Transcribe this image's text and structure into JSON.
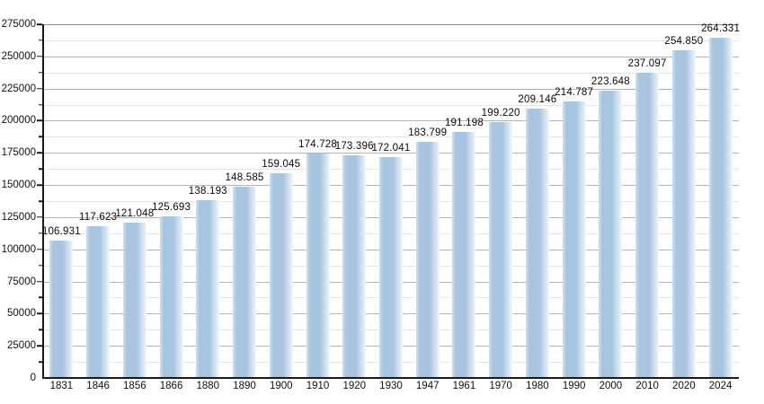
{
  "chart_data": {
    "type": "bar",
    "title": "",
    "xlabel": "",
    "ylabel": "",
    "categories": [
      "1831",
      "1846",
      "1856",
      "1866",
      "1880",
      "1890",
      "1900",
      "1910",
      "1920",
      "1930",
      "1947",
      "1961",
      "1970",
      "1980",
      "1990",
      "2000",
      "2010",
      "2020",
      "2024"
    ],
    "values": [
      106931,
      117623,
      121048,
      125693,
      138193,
      148585,
      159045,
      174728,
      173396,
      172041,
      183799,
      191198,
      199220,
      209146,
      214787,
      223648,
      237097,
      254850,
      264331
    ],
    "value_labels": [
      "106.931",
      "117.623",
      "121.048",
      "125.693",
      "138.193",
      "148.585",
      "159.045",
      "174.728",
      "173.396",
      "172.041",
      "183.799",
      "191.198",
      "199.220",
      "209.146",
      "214.787",
      "223.648",
      "237.097",
      "254.850",
      "264.331"
    ],
    "ylim": [
      0,
      275000
    ],
    "y_major_step": 25000,
    "y_minor_step": 12500,
    "y_tick_labels": [
      "0",
      "25000",
      "50000",
      "75000",
      "100000",
      "125000",
      "150000",
      "175000",
      "200000",
      "225000",
      "250000",
      "275000"
    ],
    "grid": "horizontal-major-and-minor",
    "legend": "none",
    "colors": {
      "bar": "#a8c5e0",
      "bar_edge": "#cfe0ef",
      "bar_fade": "#e9f1f8",
      "grid_major": "#b3b3b3",
      "grid_minor": "#e4e4e4",
      "grid_top": "#8c8c8c",
      "axis": "#1a1a1a"
    }
  }
}
